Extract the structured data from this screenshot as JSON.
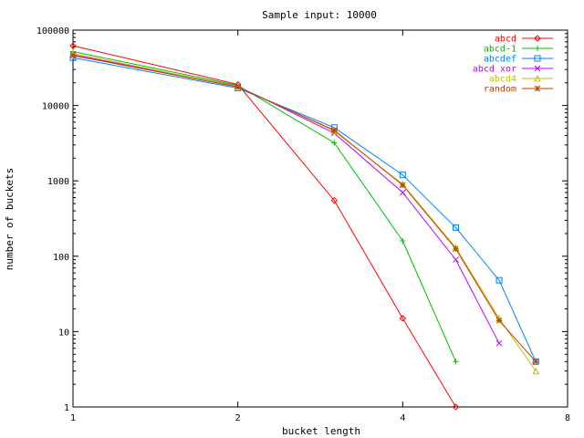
{
  "chart_data": {
    "type": "line",
    "title": "Sample input: 10000",
    "xlabel": "bucket length",
    "ylabel": "number of buckets",
    "x_scale": "log2",
    "y_scale": "log10",
    "xlim": [
      1,
      8
    ],
    "ylim": [
      1,
      100000
    ],
    "x_ticks": [
      1,
      2,
      4,
      8
    ],
    "y_ticks": [
      1,
      10,
      100,
      1000,
      10000,
      100000
    ],
    "x_tick_labels": [
      "1",
      "2",
      "4",
      "8"
    ],
    "y_tick_labels": [
      "1",
      "10",
      "100",
      "1000",
      "10000",
      "100000"
    ],
    "grid": false,
    "legend_position": "top-right",
    "series": [
      {
        "name": "abcd",
        "color": "#ff0000",
        "marker": "diamond",
        "x": [
          1,
          2,
          3,
          4,
          5
        ],
        "y": [
          62000,
          19000,
          550,
          15,
          1
        ]
      },
      {
        "name": "abcd-1",
        "color": "#00c000",
        "marker": "plus",
        "x": [
          1,
          2,
          3,
          4,
          5
        ],
        "y": [
          52000,
          18500,
          3200,
          160,
          4
        ]
      },
      {
        "name": "abcdef",
        "color": "#0080ff",
        "marker": "square",
        "x": [
          1,
          2,
          3,
          4,
          5,
          6,
          7
        ],
        "y": [
          43000,
          17000,
          5100,
          1200,
          240,
          48,
          4
        ]
      },
      {
        "name": "abcd xor",
        "color": "#c000ff",
        "marker": "cross",
        "x": [
          1,
          2,
          3,
          4,
          5,
          6
        ],
        "y": [
          47000,
          18000,
          4300,
          700,
          90,
          7
        ]
      },
      {
        "name": "abcd4",
        "color": "#c0c000",
        "marker": "triangle",
        "x": [
          1,
          2,
          3,
          4,
          5,
          6,
          7
        ],
        "y": [
          49000,
          17800,
          4600,
          900,
          130,
          15,
          3
        ]
      },
      {
        "name": "random",
        "color": "#c04000",
        "marker": "star",
        "x": [
          1,
          2,
          3,
          4,
          5,
          6,
          7
        ],
        "y": [
          46000,
          17600,
          4700,
          880,
          125,
          14,
          4
        ]
      }
    ]
  }
}
